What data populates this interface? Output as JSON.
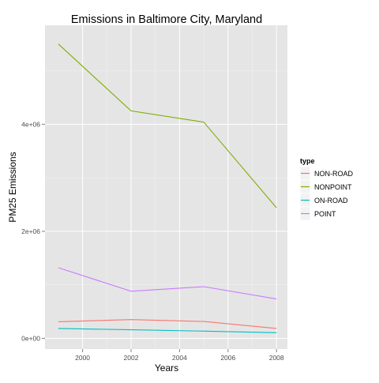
{
  "chart_data": {
    "type": "line",
    "title": "Emissions in Baltimore City, Maryland",
    "xlabel": "Years",
    "ylabel": "PM25 Emissions",
    "x": [
      1999,
      2002,
      2005,
      2008
    ],
    "xlim": [
      1998.45,
      2008.45
    ],
    "ylim": [
      -200000,
      5850000
    ],
    "xticks": [
      2000,
      2002,
      2004,
      2006,
      2008
    ],
    "xtick_labels": [
      "2000",
      "2002",
      "2004",
      "2006",
      "2008"
    ],
    "yticks": [
      0,
      2000000,
      4000000
    ],
    "ytick_labels": [
      "0e+00",
      "2e+06",
      "4e+06"
    ],
    "grid": true,
    "legend": {
      "title": "type",
      "position": "right"
    },
    "series": [
      {
        "name": "NON-ROAD",
        "color": "#F8766D",
        "values": [
          310000,
          350000,
          315000,
          185000
        ]
      },
      {
        "name": "NONPOINT",
        "color": "#7CAE00",
        "values": [
          5500000,
          4250000,
          4040000,
          2440000
        ]
      },
      {
        "name": "ON-ROAD",
        "color": "#00BFC4",
        "values": [
          185000,
          160000,
          135000,
          105000
        ]
      },
      {
        "name": "POINT",
        "color": "#C77CFF",
        "values": [
          1320000,
          880000,
          965000,
          735000
        ]
      }
    ]
  }
}
